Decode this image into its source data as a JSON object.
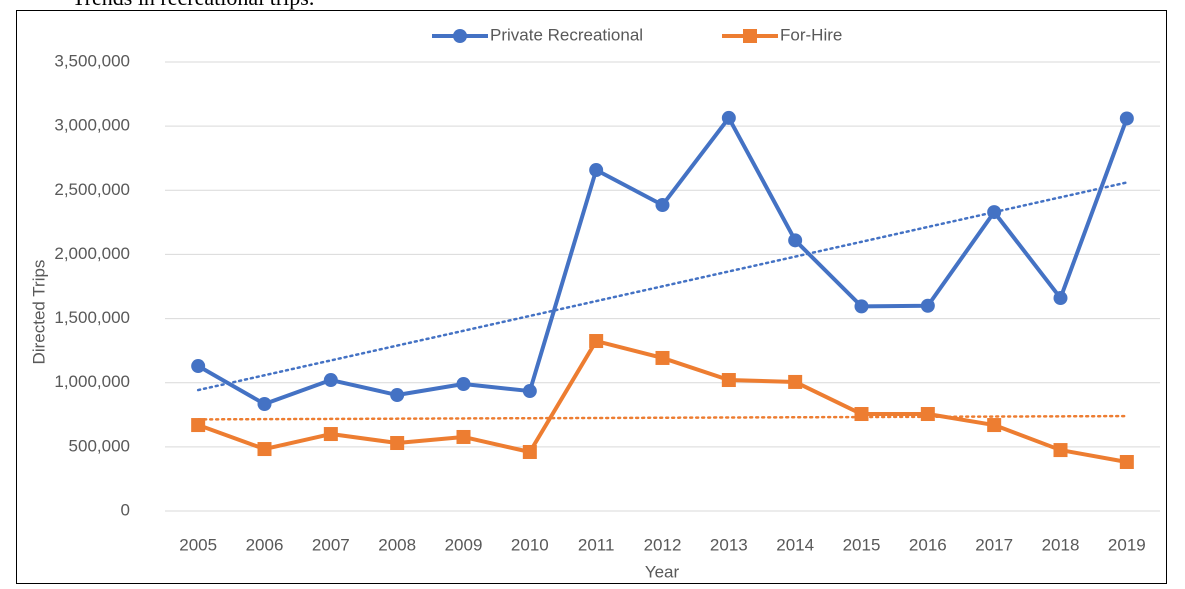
{
  "caption": "Trends in recreational trips.",
  "chart_data": {
    "type": "line",
    "x_label": "Year",
    "y_label": "Directed Trips",
    "categories": [
      "2005",
      "2006",
      "2007",
      "2008",
      "2009",
      "2010",
      "2011",
      "2012",
      "2013",
      "2014",
      "2015",
      "2016",
      "2017",
      "2018",
      "2019"
    ],
    "series": [
      {
        "name": "Private Recreational",
        "color": "#4472c4",
        "marker": "circle",
        "values": [
          1130000,
          834000,
          1021000,
          904000,
          990000,
          935000,
          2658000,
          2385000,
          3064000,
          2110000,
          1595000,
          1600000,
          2330000,
          1660000,
          3060000
        ]
      },
      {
        "name": "For-Hire",
        "color": "#ed7d31",
        "marker": "square",
        "values": [
          670000,
          483000,
          600000,
          530000,
          577000,
          460000,
          1325000,
          1193000,
          1021000,
          1006000,
          756000,
          756000,
          670000,
          475000,
          382000
        ]
      }
    ],
    "trendline": true,
    "ylim": [
      0,
      3500000
    ],
    "yticks": [
      0,
      {
        "value": 500000,
        "label": "500,000"
      },
      {
        "value": 1000000,
        "label": "1,000,000"
      },
      {
        "value": 1500000,
        "label": "1,500,000"
      },
      {
        "value": 2000000,
        "label": "2,000,000"
      },
      {
        "value": 2500000,
        "label": "2,500,000"
      },
      {
        "value": 3000000,
        "label": "3,000,000"
      },
      {
        "value": 3500000,
        "label": "3,500,000"
      }
    ],
    "grid": true,
    "legend": "top"
  }
}
